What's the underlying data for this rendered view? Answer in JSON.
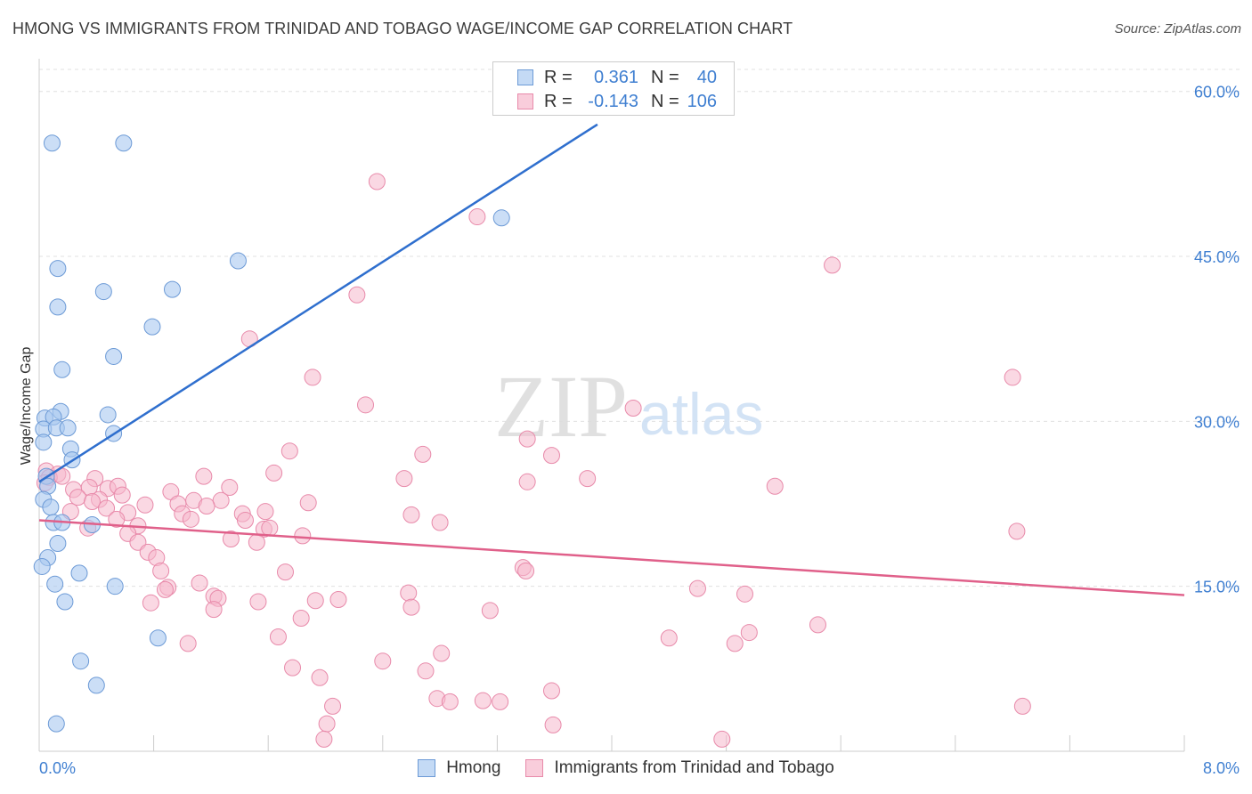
{
  "header": {
    "title": "HMONG VS IMMIGRANTS FROM TRINIDAD AND TOBAGO WAGE/INCOME GAP CORRELATION CHART",
    "source": "Source: ZipAtlas.com"
  },
  "watermark": {
    "zip": "ZIP",
    "atlas": "atlas"
  },
  "legend": {
    "r_label": "R =",
    "n_label": "N =",
    "rows": [
      {
        "r": "0.361",
        "n": "40"
      },
      {
        "r": "-0.143",
        "n": "106"
      }
    ]
  },
  "bottom_legend": {
    "a": "Hmong",
    "b": "Immigrants from Trinidad and Tobago"
  },
  "colors": {
    "hmong_fill": "#a9c8f0",
    "hmong_stroke": "#6c9ad6",
    "hmong_line": "#2f6fce",
    "tt_fill": "#f6b8cc",
    "tt_stroke": "#e88aaa",
    "tt_line": "#e0608a",
    "axis_text": "#3f7fd1",
    "grid": "#e0e0e0"
  },
  "chart_data": {
    "type": "scatter",
    "title": "HMONG VS IMMIGRANTS FROM TRINIDAD AND TOBAGO WAGE/INCOME GAP CORRELATION CHART",
    "xlabel": "",
    "ylabel": "Wage/Income Gap",
    "xlim": [
      0,
      8.0
    ],
    "ylim": [
      0,
      62
    ],
    "x_tick_labels": [
      "0.0%",
      "8.0%"
    ],
    "y_ticks": [
      15,
      30,
      45,
      60
    ],
    "y_tick_labels": [
      "15.0%",
      "30.0%",
      "45.0%",
      "60.0%"
    ],
    "grid": true,
    "series": [
      {
        "name": "Hmong",
        "r": 0.361,
        "n": 40,
        "trend": {
          "x": [
            0.0,
            3.9
          ],
          "y": [
            24.5,
            57.0
          ]
        },
        "points": [
          [
            0.09,
            55.3
          ],
          [
            0.59,
            55.3
          ],
          [
            3.23,
            48.5
          ],
          [
            1.39,
            44.6
          ],
          [
            0.13,
            43.9
          ],
          [
            0.45,
            41.8
          ],
          [
            0.93,
            42.0
          ],
          [
            0.13,
            40.4
          ],
          [
            0.79,
            38.6
          ],
          [
            0.52,
            35.9
          ],
          [
            0.16,
            34.7
          ],
          [
            0.15,
            30.9
          ],
          [
            0.48,
            30.6
          ],
          [
            0.04,
            30.3
          ],
          [
            0.1,
            30.4
          ],
          [
            0.03,
            29.3
          ],
          [
            0.12,
            29.4
          ],
          [
            0.2,
            29.4
          ],
          [
            0.52,
            28.9
          ],
          [
            0.03,
            28.1
          ],
          [
            0.22,
            27.5
          ],
          [
            0.23,
            26.5
          ],
          [
            0.05,
            25.0
          ],
          [
            0.06,
            24.1
          ],
          [
            0.03,
            22.9
          ],
          [
            0.08,
            22.2
          ],
          [
            0.1,
            20.8
          ],
          [
            0.16,
            20.8
          ],
          [
            0.37,
            20.6
          ],
          [
            0.13,
            18.9
          ],
          [
            0.06,
            17.6
          ],
          [
            0.02,
            16.8
          ],
          [
            0.28,
            16.2
          ],
          [
            0.11,
            15.2
          ],
          [
            0.53,
            15.0
          ],
          [
            0.18,
            13.6
          ],
          [
            0.83,
            10.3
          ],
          [
            0.29,
            8.2
          ],
          [
            0.4,
            6.0
          ],
          [
            0.12,
            2.5
          ]
        ]
      },
      {
        "name": "Immigrants from Trinidad and Tobago",
        "r": -0.143,
        "n": 106,
        "trend": {
          "x": [
            0.0,
            8.0
          ],
          "y": [
            21.0,
            14.2
          ]
        },
        "points": [
          [
            2.36,
            51.8
          ],
          [
            3.06,
            48.6
          ],
          [
            5.54,
            44.2
          ],
          [
            2.22,
            41.5
          ],
          [
            1.47,
            37.5
          ],
          [
            1.91,
            34.0
          ],
          [
            6.8,
            34.0
          ],
          [
            2.28,
            31.5
          ],
          [
            4.15,
            31.2
          ],
          [
            3.41,
            28.4
          ],
          [
            2.68,
            27.0
          ],
          [
            3.58,
            26.9
          ],
          [
            1.75,
            27.3
          ],
          [
            0.05,
            25.5
          ],
          [
            0.13,
            25.2
          ],
          [
            0.07,
            24.9
          ],
          [
            0.16,
            25.0
          ],
          [
            0.04,
            24.4
          ],
          [
            0.39,
            24.8
          ],
          [
            1.64,
            25.3
          ],
          [
            1.15,
            25.0
          ],
          [
            2.55,
            24.8
          ],
          [
            3.83,
            24.8
          ],
          [
            3.41,
            24.5
          ],
          [
            5.14,
            24.1
          ],
          [
            0.24,
            23.8
          ],
          [
            0.35,
            24.0
          ],
          [
            0.48,
            23.9
          ],
          [
            0.55,
            24.1
          ],
          [
            0.92,
            23.6
          ],
          [
            1.33,
            24.0
          ],
          [
            0.27,
            23.1
          ],
          [
            0.42,
            22.9
          ],
          [
            0.58,
            23.3
          ],
          [
            0.97,
            22.5
          ],
          [
            1.08,
            22.8
          ],
          [
            1.27,
            22.8
          ],
          [
            1.88,
            22.6
          ],
          [
            0.37,
            22.7
          ],
          [
            0.47,
            22.1
          ],
          [
            0.74,
            22.4
          ],
          [
            1.17,
            22.3
          ],
          [
            0.62,
            21.7
          ],
          [
            1.0,
            21.6
          ],
          [
            1.42,
            21.6
          ],
          [
            1.58,
            21.8
          ],
          [
            2.6,
            21.5
          ],
          [
            0.22,
            21.8
          ],
          [
            0.54,
            21.1
          ],
          [
            1.06,
            21.1
          ],
          [
            1.44,
            21.0
          ],
          [
            2.8,
            20.8
          ],
          [
            0.34,
            20.3
          ],
          [
            0.69,
            20.5
          ],
          [
            1.57,
            20.2
          ],
          [
            1.61,
            20.3
          ],
          [
            0.62,
            19.8
          ],
          [
            1.84,
            19.6
          ],
          [
            6.83,
            20.0
          ],
          [
            1.34,
            19.3
          ],
          [
            1.52,
            19.0
          ],
          [
            0.69,
            19.0
          ],
          [
            0.76,
            18.1
          ],
          [
            0.82,
            17.6
          ],
          [
            3.38,
            16.7
          ],
          [
            3.4,
            16.4
          ],
          [
            0.85,
            16.4
          ],
          [
            1.72,
            16.3
          ],
          [
            1.12,
            15.3
          ],
          [
            0.9,
            14.9
          ],
          [
            0.88,
            14.7
          ],
          [
            2.58,
            14.4
          ],
          [
            4.6,
            14.8
          ],
          [
            4.93,
            14.3
          ],
          [
            1.22,
            14.1
          ],
          [
            1.25,
            13.9
          ],
          [
            1.93,
            13.7
          ],
          [
            2.09,
            13.8
          ],
          [
            0.78,
            13.5
          ],
          [
            1.53,
            13.6
          ],
          [
            2.6,
            13.1
          ],
          [
            3.15,
            12.8
          ],
          [
            1.22,
            12.9
          ],
          [
            1.83,
            12.1
          ],
          [
            5.44,
            11.5
          ],
          [
            4.96,
            10.8
          ],
          [
            1.67,
            10.4
          ],
          [
            4.4,
            10.3
          ],
          [
            4.86,
            9.8
          ],
          [
            1.04,
            9.8
          ],
          [
            2.81,
            8.9
          ],
          [
            2.4,
            8.2
          ],
          [
            1.77,
            7.6
          ],
          [
            2.7,
            7.3
          ],
          [
            1.96,
            6.7
          ],
          [
            3.58,
            5.5
          ],
          [
            2.78,
            4.8
          ],
          [
            2.87,
            4.5
          ],
          [
            3.1,
            4.6
          ],
          [
            3.22,
            4.5
          ],
          [
            6.87,
            4.1
          ],
          [
            2.05,
            4.1
          ],
          [
            2.01,
            2.5
          ],
          [
            3.59,
            2.4
          ],
          [
            1.99,
            1.1
          ],
          [
            4.77,
            1.1
          ]
        ]
      }
    ]
  }
}
